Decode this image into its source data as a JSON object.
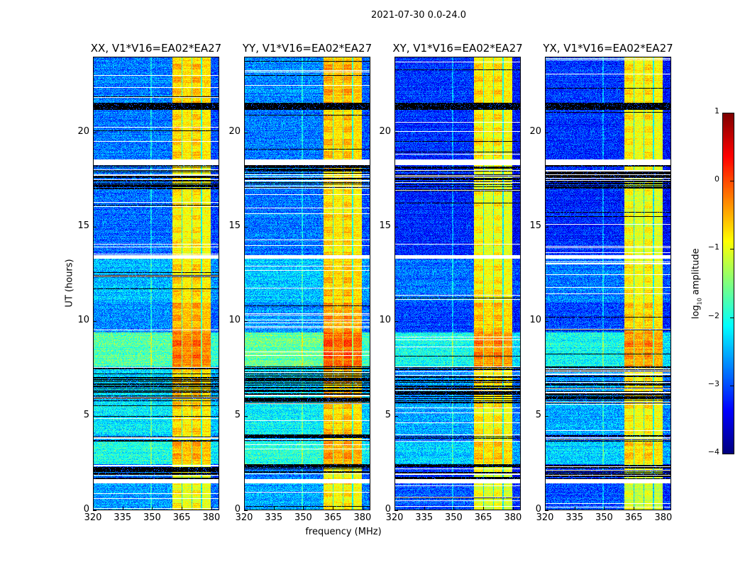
{
  "chart_data": {
    "type": "heatmap",
    "title": "2021-07-30 0.0-24.0",
    "xlabel": "frequency (MHz)",
    "ylabel": "UT (hours)",
    "xlim": [
      320,
      384
    ],
    "ylim": [
      0,
      24
    ],
    "xticks": [
      320,
      335,
      350,
      365,
      380
    ],
    "yticks": [
      0,
      5,
      10,
      15,
      20
    ],
    "panels": [
      {
        "title": "XX, V1*V16=EA02*EA27",
        "low_offset": 0.0,
        "high_offset": 0.0
      },
      {
        "title": "YY, V1*V16=EA02*EA27",
        "low_offset": 0.05,
        "high_offset": 0.1
      },
      {
        "title": "XY, V1*V16=EA02*EA27",
        "low_offset": -0.35,
        "high_offset": -0.1
      },
      {
        "title": "YX, V1*V16=EA02*EA27",
        "low_offset": -0.35,
        "high_offset": -0.15
      }
    ],
    "bright_band_mhz": [
      360.5,
      380
    ],
    "time_segments": [
      {
        "hours": [
          0,
          1.4
        ],
        "state": "data",
        "low": -2.6,
        "high": -1.0
      },
      {
        "hours": [
          1.4,
          1.6
        ],
        "state": "blank"
      },
      {
        "hours": [
          1.6,
          2.4
        ],
        "state": "flagged-stripes",
        "low": -2.8,
        "high": -1.0
      },
      {
        "hours": [
          2.4,
          3.6
        ],
        "state": "data",
        "low": -2.0,
        "high": -0.6
      },
      {
        "hours": [
          3.6,
          4.0
        ],
        "state": "flagged-stripes",
        "low": -2.5,
        "high": -0.8
      },
      {
        "hours": [
          4.0,
          5.6
        ],
        "state": "data",
        "low": -2.2,
        "high": -0.8
      },
      {
        "hours": [
          5.6,
          7.6
        ],
        "state": "flagged-stripes",
        "low": -2.3,
        "high": -0.7
      },
      {
        "hours": [
          7.6,
          9.4
        ],
        "state": "data",
        "low": -1.7,
        "high": -0.3
      },
      {
        "hours": [
          9.4,
          11.0
        ],
        "state": "data",
        "low": -2.7,
        "high": -0.6
      },
      {
        "hours": [
          11.0,
          13.3
        ],
        "state": "data",
        "low": -2.45,
        "high": -0.8
      },
      {
        "hours": [
          13.3,
          13.5
        ],
        "state": "blank"
      },
      {
        "hours": [
          13.5,
          17.0
        ],
        "state": "data",
        "low": -2.85,
        "high": -0.9
      },
      {
        "hours": [
          17.0,
          18.3
        ],
        "state": "flagged-stripes",
        "low": -2.8,
        "high": -0.9
      },
      {
        "hours": [
          18.3,
          18.6
        ],
        "state": "blank"
      },
      {
        "hours": [
          18.6,
          21.2
        ],
        "state": "data",
        "low": -2.8,
        "high": -0.8
      },
      {
        "hours": [
          21.2,
          21.6
        ],
        "state": "flagged"
      },
      {
        "hours": [
          21.6,
          24.0
        ],
        "state": "data",
        "low": -2.75,
        "high": -0.7
      }
    ],
    "colorbar": {
      "label_main": "log",
      "label_sub": "10",
      "label_rest": " amplitude",
      "range": [
        -4,
        1
      ],
      "ticks": [
        "1",
        "0",
        "−1",
        "−2",
        "−3",
        "−4"
      ],
      "tick_values": [
        1,
        0,
        -1,
        -2,
        -3,
        -4
      ],
      "colormap": "jet"
    }
  }
}
